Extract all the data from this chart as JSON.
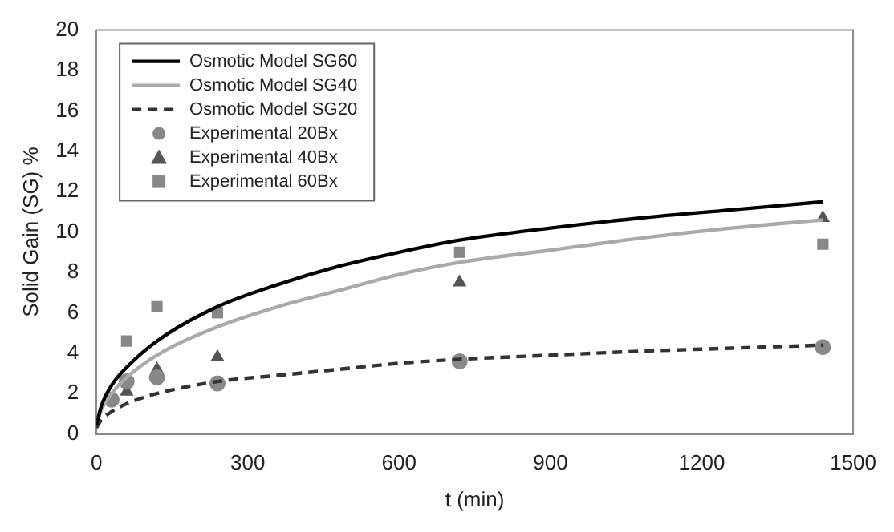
{
  "chart_data": {
    "type": "line",
    "xlabel": "t (min)",
    "ylabel": "Solid Gain (SG) %",
    "xlim": [
      0,
      1500
    ],
    "xticks": [
      0,
      300,
      600,
      900,
      1200,
      1500
    ],
    "ylim": [
      0,
      20
    ],
    "yticks": [
      0,
      2,
      4,
      6,
      8,
      10,
      12,
      14,
      16,
      18,
      20
    ],
    "grid": false,
    "legend": "top left",
    "series": [
      {
        "name": "Osmotic Model SG60",
        "type": "line",
        "color": "#000000",
        "line_style": "solid",
        "marker": "none",
        "x": [
          0,
          10,
          30,
          60,
          120,
          240,
          360,
          480,
          600,
          720,
          900,
          1080,
          1260,
          1440
        ],
        "values": [
          0.4,
          1.4,
          2.4,
          3.3,
          4.6,
          6.3,
          7.4,
          8.3,
          9.0,
          9.6,
          10.2,
          10.7,
          11.1,
          11.5
        ]
      },
      {
        "name": "Osmotic Model SG40",
        "type": "line",
        "color": "#aaaaaa",
        "line_style": "solid",
        "marker": "none",
        "x": [
          0,
          10,
          30,
          60,
          120,
          240,
          360,
          480,
          600,
          720,
          900,
          1080,
          1260,
          1440
        ],
        "values": [
          0.4,
          1.2,
          2.0,
          2.8,
          3.9,
          5.3,
          6.3,
          7.1,
          7.9,
          8.5,
          9.1,
          9.7,
          10.2,
          10.6
        ]
      },
      {
        "name": "Osmotic Model SG20",
        "type": "line",
        "color": "#333333",
        "line_style": "dashed",
        "marker": "none",
        "x": [
          0,
          10,
          30,
          60,
          120,
          240,
          360,
          480,
          600,
          720,
          900,
          1080,
          1260,
          1440
        ],
        "values": [
          0.3,
          0.7,
          1.1,
          1.5,
          2.0,
          2.6,
          2.9,
          3.2,
          3.5,
          3.7,
          3.9,
          4.1,
          4.25,
          4.4
        ]
      },
      {
        "name": "Experimental 20Bx",
        "type": "scatter",
        "color": "#888888",
        "marker": "circle",
        "x": [
          30,
          60,
          120,
          240,
          720,
          1440
        ],
        "values": [
          1.7,
          2.6,
          2.8,
          2.5,
          3.6,
          4.3
        ]
      },
      {
        "name": "Experimental 40Bx",
        "type": "scatter",
        "color": "#555555",
        "marker": "triangle",
        "x": [
          60,
          120,
          240,
          720,
          1440
        ],
        "values": [
          2.1,
          3.2,
          3.8,
          7.5,
          10.7
        ]
      },
      {
        "name": "Experimental 60Bx",
        "type": "scatter",
        "color": "#888888",
        "marker": "square",
        "x": [
          60,
          120,
          240,
          720,
          1440
        ],
        "values": [
          4.6,
          6.3,
          6.0,
          9.0,
          9.4
        ]
      }
    ]
  }
}
